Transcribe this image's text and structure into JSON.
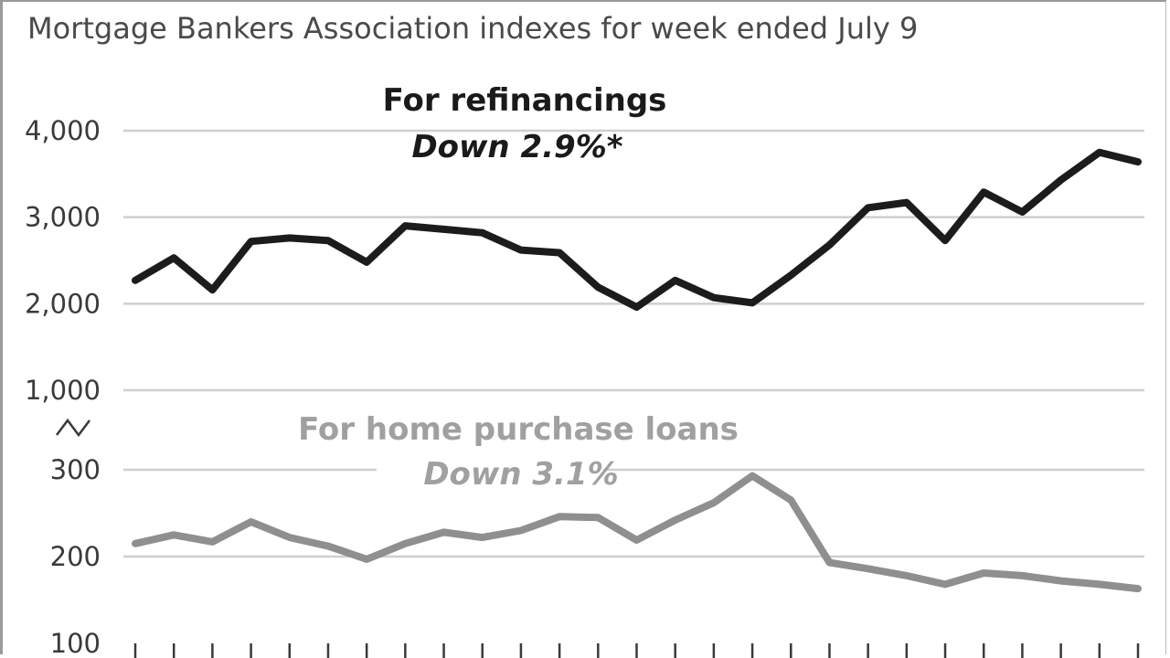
{
  "chart_data": {
    "type": "line",
    "title": "Mortgage Bankers Association indexes for week ended July 9",
    "axis_break": true,
    "panels": [
      {
        "name": "refinancings",
        "label": "For refinancings",
        "sublabel": "Down 2.9%*",
        "color": "#1c1c1c",
        "yticks": [
          "1,000",
          "2,000",
          "3,000",
          "4,000"
        ],
        "ylim": [
          1000,
          4000
        ],
        "values": [
          2270,
          2530,
          2160,
          2720,
          2760,
          2730,
          2480,
          2900,
          2860,
          2820,
          2620,
          2590,
          2190,
          1960,
          2270,
          2070,
          2010,
          2330,
          2680,
          3110,
          3170,
          2730,
          3290,
          3060,
          3430,
          3750,
          3640
        ]
      },
      {
        "name": "home-purchase",
        "label": "For home purchase loans",
        "sublabel": "Down 3.1%",
        "color": "#8f8f8f",
        "yticks": [
          "100",
          "200",
          "300"
        ],
        "ylim": [
          100,
          300
        ],
        "values": [
          215,
          225,
          217,
          240,
          222,
          212,
          197,
          215,
          228,
          222,
          230,
          246,
          245,
          219,
          242,
          262,
          293,
          265,
          193,
          186,
          178,
          168,
          181,
          178,
          172,
          168,
          163
        ]
      }
    ]
  }
}
